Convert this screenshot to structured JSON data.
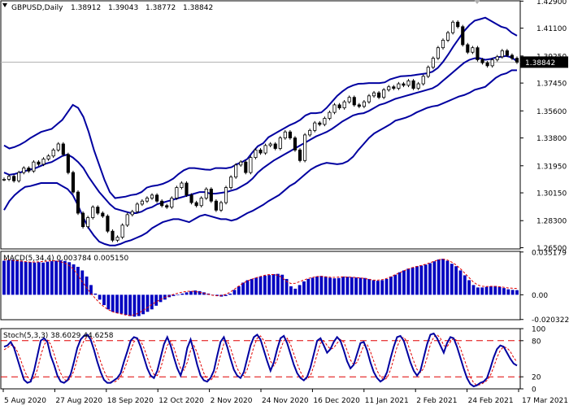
{
  "chart_data": [
    {
      "panel": "price",
      "type": "line",
      "title": "GBPUSD,Daily",
      "ohlc_header": [
        "1.38912",
        "1.39043",
        "1.38772",
        "1.38842"
      ],
      "current_price": 1.38842,
      "current_price_label": "1.38842",
      "ylim": [
        1.2642,
        1.4292
      ],
      "y_ticks": [
        "1.42900",
        "1.41100",
        "1.39250",
        "1.37450",
        "1.35600",
        "1.33800",
        "1.31950",
        "1.30150",
        "1.28300",
        "1.26500"
      ],
      "x_tick_labels": [
        "5 Aug 2020",
        "27 Aug 2020",
        "18 Sep 2020",
        "12 Oct 2020",
        "2 Nov 2020",
        "24 Nov 2020",
        "16 Dec 2020",
        "11 Jan 2021",
        "2 Feb 2021",
        "24 Feb 2021",
        "17 Mar 2021"
      ],
      "grid": false,
      "series": [
        {
          "role": "price-close",
          "color": "#000000",
          "values": [
            1.3105,
            1.3125,
            1.3095,
            1.315,
            1.318,
            1.316,
            1.322,
            1.3205,
            1.324,
            1.326,
            1.33,
            1.334,
            1.327,
            1.315,
            1.302,
            1.288,
            1.279,
            1.285,
            1.292,
            1.288,
            1.286,
            1.276,
            1.27,
            1.272,
            1.28,
            1.287,
            1.289,
            1.294,
            1.296,
            1.298,
            1.3,
            1.296,
            1.293,
            1.292,
            1.298,
            1.305,
            1.308,
            1.3,
            1.295,
            1.293,
            1.298,
            1.304,
            1.296,
            1.29,
            1.295,
            1.305,
            1.312,
            1.32,
            1.322,
            1.315,
            1.325,
            1.33,
            1.328,
            1.333,
            1.334,
            1.331,
            1.338,
            1.342,
            1.338,
            1.33,
            1.323,
            1.34,
            1.343,
            1.348,
            1.347,
            1.351,
            1.355,
            1.36,
            1.358,
            1.362,
            1.365,
            1.36,
            1.359,
            1.362,
            1.366,
            1.368,
            1.365,
            1.37,
            1.372,
            1.371,
            1.374,
            1.373,
            1.376,
            1.371,
            1.374,
            1.379,
            1.385,
            1.391,
            1.398,
            1.403,
            1.408,
            1.415,
            1.412,
            1.4,
            1.395,
            1.398,
            1.39,
            1.388,
            1.386,
            1.39,
            1.392,
            1.396,
            1.393,
            1.391,
            1.3884
          ]
        },
        {
          "role": "bollinger-upper",
          "color": "#0000a0",
          "values": [
            1.333,
            1.331,
            1.332,
            1.3335,
            1.3355,
            1.338,
            1.34,
            1.342,
            1.343,
            1.344,
            1.347,
            1.35,
            1.355,
            1.36,
            1.358,
            1.352,
            1.342,
            1.33,
            1.32,
            1.31,
            1.302,
            1.298,
            1.2985,
            1.299,
            1.3,
            1.3005,
            1.302,
            1.305,
            1.306,
            1.3065,
            1.3075,
            1.309,
            1.311,
            1.314,
            1.3165,
            1.318,
            1.318,
            1.3175,
            1.317,
            1.3168,
            1.318,
            1.318,
            1.3178,
            1.3185,
            1.3205,
            1.322,
            1.324,
            1.3285,
            1.3325,
            1.3345,
            1.3385,
            1.3405,
            1.3425,
            1.3445,
            1.3465,
            1.348,
            1.35,
            1.353,
            1.3545,
            1.3545,
            1.355,
            1.358,
            1.362,
            1.366,
            1.369,
            1.3715,
            1.373,
            1.374,
            1.3742,
            1.3745,
            1.3745,
            1.3745,
            1.375,
            1.377,
            1.378,
            1.379,
            1.3792,
            1.3795,
            1.38,
            1.3805,
            1.381,
            1.382,
            1.3845,
            1.3885,
            1.3935,
            1.399,
            1.404,
            1.409,
            1.413,
            1.416,
            1.417,
            1.418,
            1.416,
            1.414,
            1.412,
            1.411,
            1.408,
            1.406
          ]
        },
        {
          "role": "bollinger-middle",
          "color": "#0000a0",
          "values": [
            1.315,
            1.3135,
            1.314,
            1.315,
            1.316,
            1.317,
            1.318,
            1.3195,
            1.321,
            1.322,
            1.324,
            1.326,
            1.327,
            1.325,
            1.322,
            1.318,
            1.312,
            1.307,
            1.302,
            1.298,
            1.294,
            1.291,
            1.29,
            1.289,
            1.288,
            1.288,
            1.289,
            1.291,
            1.292,
            1.294,
            1.295,
            1.296,
            1.297,
            1.298,
            1.299,
            1.3,
            1.301,
            1.302,
            1.302,
            1.301,
            1.301,
            1.3015,
            1.302,
            1.303,
            1.304,
            1.306,
            1.308,
            1.311,
            1.315,
            1.318,
            1.3205,
            1.323,
            1.325,
            1.327,
            1.329,
            1.331,
            1.333,
            1.335,
            1.337,
            1.339,
            1.3405,
            1.342,
            1.344,
            1.3465,
            1.349,
            1.351,
            1.353,
            1.354,
            1.3545,
            1.356,
            1.358,
            1.36,
            1.361,
            1.3625,
            1.364,
            1.365,
            1.366,
            1.367,
            1.368,
            1.369,
            1.37,
            1.371,
            1.373,
            1.376,
            1.379,
            1.382,
            1.385,
            1.388,
            1.39,
            1.391,
            1.391,
            1.39,
            1.3905,
            1.3915,
            1.392,
            1.3925,
            1.3915,
            1.389
          ]
        },
        {
          "role": "bollinger-lower",
          "color": "#0000a0",
          "values": [
            1.29,
            1.296,
            1.3,
            1.303,
            1.3055,
            1.306,
            1.307,
            1.308,
            1.308,
            1.308,
            1.308,
            1.306,
            1.304,
            1.3,
            1.293,
            1.285,
            1.278,
            1.273,
            1.269,
            1.2675,
            1.2665,
            1.2665,
            1.2675,
            1.269,
            1.27,
            1.2715,
            1.273,
            1.275,
            1.278,
            1.28,
            1.282,
            1.283,
            1.284,
            1.284,
            1.283,
            1.282,
            1.284,
            1.286,
            1.287,
            1.286,
            1.285,
            1.284,
            1.284,
            1.283,
            1.284,
            1.286,
            1.288,
            1.2895,
            1.2915,
            1.2935,
            1.296,
            1.298,
            1.3,
            1.303,
            1.306,
            1.308,
            1.311,
            1.314,
            1.317,
            1.319,
            1.3205,
            1.3215,
            1.321,
            1.3205,
            1.321,
            1.3225,
            1.3255,
            1.33,
            1.334,
            1.338,
            1.341,
            1.343,
            1.345,
            1.347,
            1.3495,
            1.3505,
            1.3515,
            1.353,
            1.355,
            1.3565,
            1.358,
            1.359,
            1.3595,
            1.361,
            1.3625,
            1.364,
            1.3655,
            1.3665,
            1.368,
            1.37,
            1.371,
            1.372,
            1.375,
            1.378,
            1.38,
            1.381,
            1.383,
            1.383
          ]
        }
      ]
    },
    {
      "panel": "macd",
      "type": "bar",
      "label": "MACD(5,34,4) 0.003784 0.005150",
      "ylim": [
        -0.0205,
        0.0357
      ],
      "y_ticks": [
        "0.035179",
        "0.00",
        "-0.020322"
      ],
      "series": [
        {
          "role": "macd-histogram",
          "color": "#0000c0",
          "values": [
            0.028,
            0.0285,
            0.029,
            0.028,
            0.0275,
            0.027,
            0.0268,
            0.0265,
            0.0268,
            0.0265,
            0.0272,
            0.0276,
            0.028,
            0.0283,
            0.0278,
            0.0268,
            0.025,
            0.023,
            0.02,
            0.015,
            0.008,
            0.001,
            -0.004,
            -0.0085,
            -0.012,
            -0.014,
            -0.015,
            -0.0155,
            -0.0165,
            -0.0175,
            -0.018,
            -0.0175,
            -0.016,
            -0.014,
            -0.012,
            -0.009,
            -0.006,
            -0.004,
            -0.002,
            -0.001,
            0.0,
            0.001,
            0.002,
            0.003,
            0.0035,
            0.003,
            0.002,
            0.001,
            0.0,
            -0.001,
            -0.0015,
            -0.001,
            0.001,
            0.004,
            0.007,
            0.01,
            0.012,
            0.013,
            0.014,
            0.015,
            0.0158,
            0.0162,
            0.017,
            0.0172,
            0.0165,
            0.013,
            0.007,
            0.005,
            0.008,
            0.011,
            0.013,
            0.014,
            0.015,
            0.0155,
            0.015,
            0.014,
            0.0135,
            0.0138,
            0.015,
            0.0148,
            0.0145,
            0.0142,
            0.014,
            0.0138,
            0.013,
            0.012,
            0.0115,
            0.012,
            0.013,
            0.015,
            0.0165,
            0.0185,
            0.02,
            0.0215,
            0.0225,
            0.0235,
            0.024,
            0.0248,
            0.026,
            0.0275,
            0.029,
            0.0296,
            0.028,
            0.0255,
            0.0235,
            0.02,
            0.016,
            0.012,
            0.008,
            0.006,
            0.006,
            0.0065,
            0.007,
            0.0072,
            0.0065,
            0.0055,
            0.0045,
            0.004,
            0.0038
          ]
        },
        {
          "role": "macd-signal",
          "color": "#e00000",
          "values": [
            0.029,
            0.0287,
            0.0283,
            0.028,
            0.0277,
            0.0272,
            0.0269,
            0.027,
            0.0271,
            0.0274,
            0.0278,
            0.028,
            0.0279,
            0.0272,
            0.026,
            0.024,
            0.021,
            0.016,
            0.0105,
            0.006,
            0.001,
            -0.003,
            -0.0068,
            -0.01,
            -0.0122,
            -0.014,
            -0.015,
            -0.0158,
            -0.0166,
            -0.017,
            -0.0165,
            -0.015,
            -0.0128,
            -0.0105,
            -0.008,
            -0.0058,
            -0.0038,
            -0.0022,
            -0.0009,
            0.0004,
            0.0013,
            0.0022,
            0.0028,
            0.003,
            0.0027,
            0.002,
            0.0012,
            0.0004,
            -0.0004,
            -0.0008,
            -0.0006,
            0.0004,
            0.0022,
            0.0046,
            0.0072,
            0.0096,
            0.0114,
            0.0128,
            0.014,
            0.015,
            0.016,
            0.0166,
            0.0166,
            0.016,
            0.014,
            0.011,
            0.0092,
            0.0095,
            0.0108,
            0.0122,
            0.0134,
            0.0143,
            0.015,
            0.0151,
            0.0148,
            0.0144,
            0.0143,
            0.0146,
            0.0147,
            0.0146,
            0.0144,
            0.0142,
            0.0139,
            0.0134,
            0.0126,
            0.0121,
            0.012,
            0.0124,
            0.0134,
            0.0148,
            0.0165,
            0.0181,
            0.0198,
            0.0212,
            0.0224,
            0.0233,
            0.0241,
            0.0251,
            0.0263,
            0.0277,
            0.0288,
            0.0293,
            0.0286,
            0.0268,
            0.0245,
            0.0214,
            0.0178,
            0.014,
            0.0104,
            0.008,
            0.007,
            0.0068,
            0.0069,
            0.0069,
            0.0066,
            0.0061,
            0.0056,
            0.0053,
            0.0051
          ]
        }
      ]
    },
    {
      "panel": "stochastic",
      "type": "line",
      "label": "Stoch(5,3,3) 38.6029 44.6258",
      "ylim": [
        0,
        100
      ],
      "y_ticks": [
        "100",
        "80",
        "20",
        "0"
      ],
      "levels": [
        80,
        20
      ],
      "series": [
        {
          "role": "stoch-main",
          "color": "#0000a0",
          "values": [
            70,
            72,
            78,
            68,
            50,
            32,
            15,
            10,
            12,
            30,
            55,
            80,
            84,
            78,
            55,
            40,
            22,
            12,
            10,
            14,
            24,
            45,
            68,
            82,
            88,
            90,
            82,
            65,
            45,
            28,
            15,
            10,
            10,
            14,
            18,
            26,
            45,
            62,
            80,
            86,
            84,
            70,
            52,
            34,
            22,
            18,
            30,
            52,
            74,
            86,
            72,
            52,
            34,
            22,
            40,
            68,
            82,
            62,
            40,
            22,
            14,
            12,
            18,
            30,
            55,
            78,
            86,
            70,
            50,
            32,
            22,
            18,
            28,
            50,
            72,
            86,
            90,
            82,
            64,
            46,
            30,
            44,
            66,
            84,
            88,
            76,
            58,
            40,
            26,
            18,
            14,
            20,
            36,
            58,
            80,
            84,
            72,
            60,
            66,
            78,
            86,
            80,
            64,
            46,
            34,
            40,
            58,
            76,
            78,
            64,
            44,
            28,
            18,
            12,
            16,
            28,
            50,
            70,
            86,
            88,
            80,
            62,
            44,
            30,
            22,
            30,
            52,
            74,
            90,
            92,
            84,
            72,
            60,
            76,
            86,
            84,
            70,
            52,
            34,
            18,
            8,
            4,
            6,
            10,
            12,
            18,
            34,
            52,
            66,
            72,
            70,
            60,
            50,
            42,
            38.6
          ]
        },
        {
          "role": "stoch-signal",
          "color": "#e00000",
          "values": [
            65,
            68,
            73,
            71,
            62,
            48,
            32,
            20,
            14,
            18,
            32,
            55,
            73,
            81,
            74,
            58,
            40,
            26,
            16,
            13,
            18,
            30,
            50,
            68,
            80,
            87,
            87,
            78,
            62,
            45,
            30,
            18,
            12,
            11,
            14,
            20,
            31,
            46,
            64,
            78,
            84,
            80,
            68,
            52,
            36,
            24,
            22,
            34,
            54,
            72,
            79,
            68,
            50,
            34,
            31,
            44,
            64,
            72,
            60,
            42,
            26,
            16,
            14,
            20,
            34,
            56,
            75,
            80,
            68,
            50,
            34,
            24,
            22,
            32,
            50,
            70,
            84,
            88,
            80,
            64,
            46,
            38,
            48,
            66,
            80,
            84,
            74,
            58,
            42,
            28,
            19,
            16,
            22,
            38,
            58,
            76,
            80,
            72,
            66,
            68,
            76,
            82,
            78,
            64,
            48,
            40,
            44,
            58,
            72,
            74,
            62,
            46,
            30,
            20,
            15,
            18,
            31,
            50,
            70,
            82,
            86,
            78,
            62,
            46,
            32,
            27,
            34,
            52,
            74,
            86,
            90,
            84,
            72,
            70,
            78,
            84,
            80,
            68,
            52,
            36,
            20,
            10,
            6,
            7,
            10,
            14,
            22,
            36,
            52,
            64,
            70,
            68,
            62,
            52,
            44.6
          ]
        }
      ]
    }
  ]
}
